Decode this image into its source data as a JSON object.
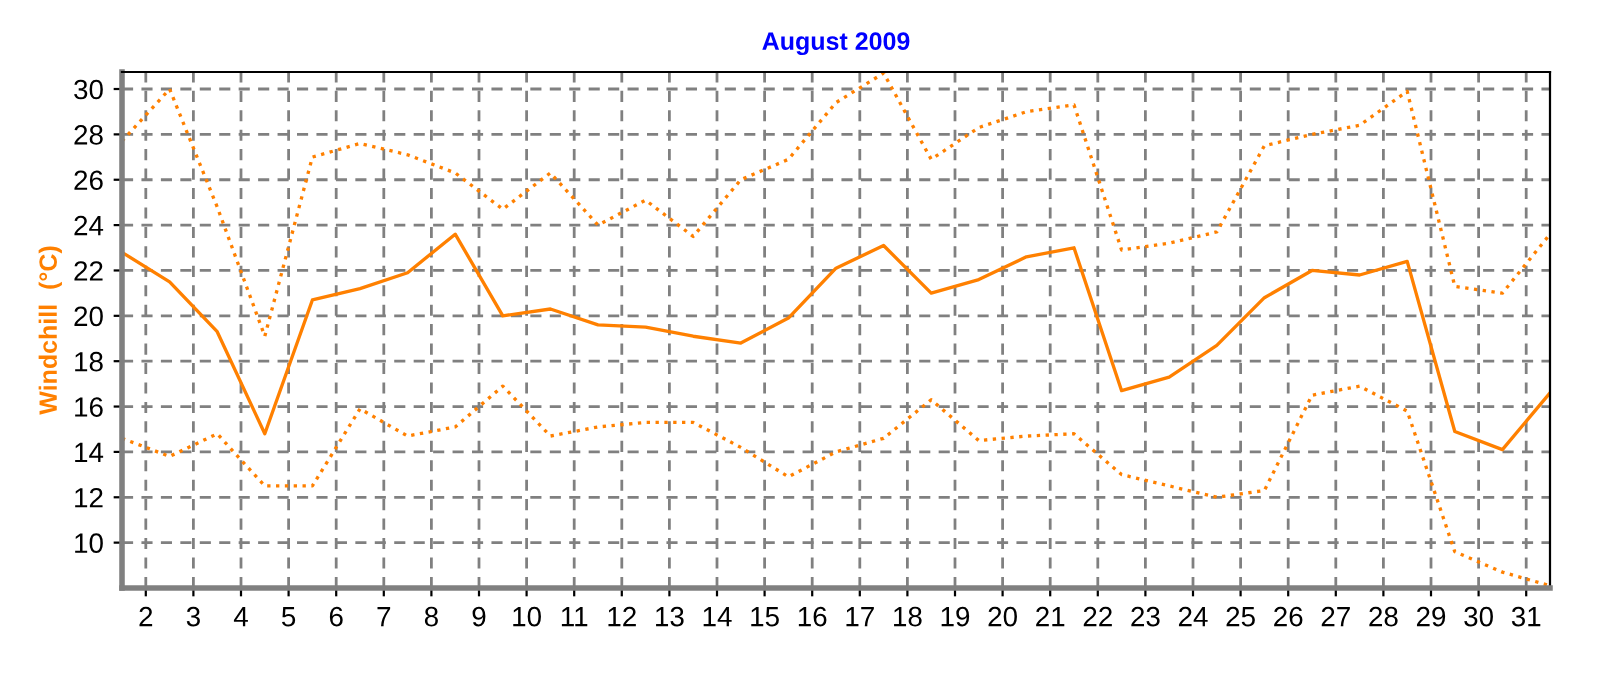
{
  "chart_data": {
    "type": "line",
    "title": "August 2009",
    "ylabel": "Windchill  (°C)",
    "x": [
      1.5,
      2.5,
      3.5,
      4.5,
      5.5,
      6.5,
      7.5,
      8.5,
      9.5,
      10.5,
      11.5,
      12.5,
      13.5,
      14.5,
      15.5,
      16.5,
      17.5,
      18.5,
      19.5,
      20.5,
      21.5,
      22.5,
      23.5,
      24.5,
      25.5,
      26.5,
      27.5,
      28.5,
      29.5,
      30.5,
      31.5
    ],
    "series": [
      {
        "color": "#ff8000",
        "line_style": "dotted",
        "values": [
          27.7,
          30.0,
          24.8,
          19.1,
          27.0,
          27.6,
          27.1,
          26.3,
          24.7,
          26.3,
          24.0,
          25.1,
          23.5,
          26.0,
          26.9,
          29.4,
          30.7,
          26.9,
          28.3,
          29.0,
          29.3,
          22.9,
          23.2,
          23.7,
          27.5,
          28.0,
          28.4,
          29.9,
          21.3,
          21.0,
          23.6
        ]
      },
      {
        "color": "#ff8000",
        "line_style": "solid",
        "values": [
          22.8,
          21.5,
          19.3,
          14.8,
          20.7,
          21.2,
          21.9,
          23.6,
          20.0,
          20.3,
          19.6,
          19.5,
          19.1,
          18.8,
          19.9,
          22.1,
          23.1,
          21.0,
          21.6,
          22.6,
          23.0,
          16.7,
          17.3,
          18.7,
          20.8,
          22.0,
          21.8,
          22.4,
          14.9,
          14.1,
          16.6
        ]
      },
      {
        "color": "#ff8000",
        "line_style": "dotted",
        "values": [
          14.6,
          13.8,
          14.8,
          12.5,
          12.5,
          15.9,
          14.7,
          15.1,
          16.9,
          14.7,
          15.1,
          15.3,
          15.3,
          14.2,
          12.9,
          14.0,
          14.6,
          16.3,
          14.5,
          14.7,
          14.8,
          13.0,
          12.5,
          12.0,
          12.3,
          16.5,
          16.9,
          15.8,
          9.6,
          8.7,
          8.1
        ]
      }
    ],
    "xlim": [
      1.5,
      31.5
    ],
    "xticks": [
      2,
      3,
      4,
      5,
      6,
      7,
      8,
      9,
      10,
      11,
      12,
      13,
      14,
      15,
      16,
      17,
      18,
      19,
      20,
      21,
      22,
      23,
      24,
      25,
      26,
      27,
      28,
      29,
      30,
      31
    ],
    "ylim": [
      8,
      30.75
    ],
    "yticks": [
      10,
      12,
      14,
      16,
      18,
      20,
      22,
      24,
      26,
      28,
      30
    ],
    "grid": true,
    "marker": "none"
  }
}
